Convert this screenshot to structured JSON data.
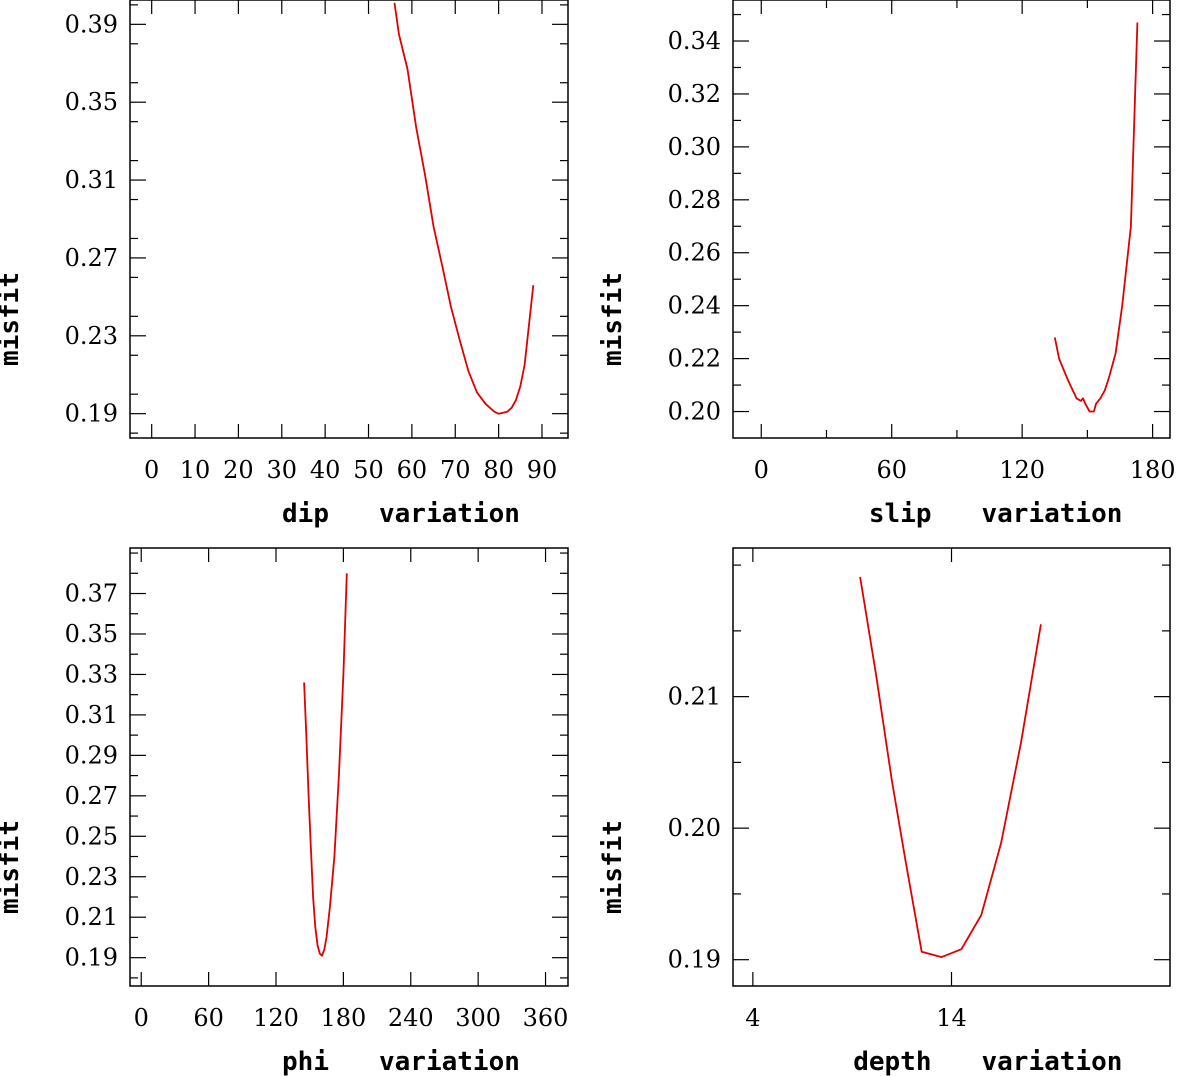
{
  "chart_data": [
    {
      "type": "line",
      "panel": "top-left",
      "xlabel": "dip",
      "xlabel2": "variation",
      "ylabel": "misfit",
      "xlim": [
        -5,
        96
      ],
      "ylim": [
        0.1775,
        0.4025
      ],
      "xticks": [
        0,
        10,
        20,
        30,
        40,
        50,
        60,
        70,
        80,
        90
      ],
      "xtick_labels": [
        "0",
        "10",
        "20",
        "30",
        "40",
        "50",
        "60",
        "70",
        "80",
        "90"
      ],
      "yticks": [
        0.19,
        0.23,
        0.27,
        0.31,
        0.35,
        0.39
      ],
      "ytick_labels": [
        "0.19",
        "0.23",
        "0.27",
        "0.31",
        "0.35",
        "0.39"
      ],
      "y_minor_step": 0.02,
      "series": [
        {
          "name": "dip",
          "color": "#e00000",
          "x": [
            56,
            57,
            59,
            61,
            63,
            65,
            67,
            69,
            71,
            73,
            75,
            77,
            79,
            80,
            82,
            83,
            84,
            85,
            86,
            88
          ],
          "y": [
            0.401,
            0.385,
            0.367,
            0.337,
            0.313,
            0.286,
            0.266,
            0.245,
            0.228,
            0.212,
            0.201,
            0.195,
            0.191,
            0.19,
            0.191,
            0.193,
            0.197,
            0.204,
            0.215,
            0.256
          ]
        }
      ]
    },
    {
      "type": "line",
      "panel": "top-right",
      "xlabel": "slip",
      "xlabel2": "variation",
      "ylabel": "misfit",
      "xlim": [
        -13,
        188
      ],
      "ylim": [
        0.19,
        0.3555
      ],
      "xticks": [
        0,
        60,
        120,
        180
      ],
      "xtick_labels": [
        "0",
        "60",
        "120",
        "180"
      ],
      "yticks": [
        0.2,
        0.22,
        0.24,
        0.26,
        0.28,
        0.3,
        0.32,
        0.34
      ],
      "ytick_labels": [
        "0.20",
        "0.22",
        "0.24",
        "0.26",
        "0.28",
        "0.30",
        "0.32",
        "0.34"
      ],
      "y_minor_step": 0.01,
      "x_minor_step": 30,
      "series": [
        {
          "name": "slip",
          "color": "#e00000",
          "x": [
            135,
            137,
            141,
            145,
            147,
            148,
            149,
            151,
            153,
            154,
            156,
            158,
            160,
            163,
            166,
            170,
            173
          ],
          "y": [
            0.228,
            0.22,
            0.212,
            0.205,
            0.204,
            0.205,
            0.203,
            0.2,
            0.2,
            0.203,
            0.205,
            0.208,
            0.213,
            0.222,
            0.24,
            0.27,
            0.347
          ]
        }
      ]
    },
    {
      "type": "line",
      "panel": "bottom-left",
      "xlabel": "phi",
      "xlabel2": "variation",
      "ylabel": "misfit",
      "xlim": [
        -10,
        380
      ],
      "ylim": [
        0.176,
        0.3925
      ],
      "xticks": [
        0,
        60,
        120,
        180,
        240,
        300,
        360
      ],
      "xtick_labels": [
        "0",
        "60",
        "120",
        "180",
        "240",
        "300",
        "360"
      ],
      "yticks": [
        0.19,
        0.21,
        0.23,
        0.25,
        0.27,
        0.29,
        0.31,
        0.33,
        0.35,
        0.37
      ],
      "ytick_labels": [
        "0.19",
        "0.21",
        "0.23",
        "0.25",
        "0.27",
        "0.29",
        "0.31",
        "0.33",
        "0.35",
        "0.37"
      ],
      "y_minor_step": 0.01,
      "series": [
        {
          "name": "phi",
          "color": "#e00000",
          "x": [
            145,
            147,
            149,
            151,
            153,
            155,
            157,
            159,
            161,
            163,
            165,
            168,
            172,
            176,
            180,
            183
          ],
          "y": [
            0.326,
            0.3,
            0.27,
            0.245,
            0.22,
            0.205,
            0.196,
            0.192,
            0.191,
            0.194,
            0.2,
            0.215,
            0.24,
            0.28,
            0.33,
            0.38
          ]
        }
      ]
    },
    {
      "type": "line",
      "panel": "bottom-right",
      "xlabel": "depth",
      "xlabel2": "variation",
      "ylabel": "misfit",
      "xlim": [
        3,
        25
      ],
      "ylim": [
        0.188,
        0.2213
      ],
      "xticks": [
        4,
        14
      ],
      "xtick_labels": [
        "4",
        "14"
      ],
      "yticks": [
        0.19,
        0.2,
        0.21
      ],
      "ytick_labels": [
        "0.19",
        "0.20",
        "0.21"
      ],
      "y_minor_step": 0.005,
      "series": [
        {
          "name": "depth",
          "color": "#e00000",
          "x": [
            9.4,
            10.2,
            11,
            11.7,
            12.5,
            13.5,
            14.5,
            15.5,
            16.5,
            17.5,
            18.5
          ],
          "y": [
            0.2191,
            0.2117,
            0.2036,
            0.1974,
            0.1906,
            0.1902,
            0.1908,
            0.1934,
            0.1989,
            0.2065,
            0.2155
          ]
        }
      ]
    }
  ]
}
